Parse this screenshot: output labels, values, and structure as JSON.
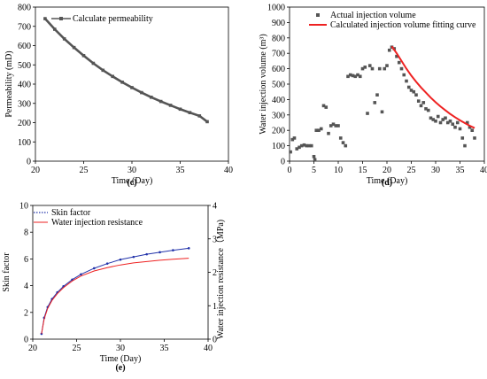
{
  "chart_data": [
    {
      "type": "line",
      "panel_label": "(c)",
      "xlabel": "Time (Day)",
      "ylabel": "Permeability (mD)",
      "xlim": [
        20,
        40
      ],
      "ylim": [
        0,
        800
      ],
      "xticks": [
        20,
        25,
        30,
        35,
        40
      ],
      "yticks": [
        0,
        100,
        200,
        300,
        400,
        500,
        600,
        700,
        800
      ],
      "legend_position": "top-left",
      "grid": false,
      "series": [
        {
          "name": "Calculate permeability",
          "color": "#555555",
          "marker": "square",
          "x": [
            21,
            22,
            23,
            24,
            25,
            26,
            27,
            28,
            29,
            30,
            31,
            32,
            33,
            34,
            35,
            36,
            37,
            37.8
          ],
          "y": [
            740,
            685,
            635,
            590,
            548,
            508,
            472,
            440,
            410,
            382,
            356,
            332,
            310,
            290,
            270,
            252,
            235,
            205
          ]
        }
      ]
    },
    {
      "type": "scatter",
      "panel_label": "(d)",
      "xlabel": "Time (Day)",
      "ylabel": "Water injection volume (m³)",
      "xlim": [
        0,
        40
      ],
      "ylim": [
        0,
        1000
      ],
      "xticks": [
        0,
        5,
        10,
        15,
        20,
        25,
        30,
        35,
        40
      ],
      "yticks": [
        0,
        100,
        200,
        300,
        400,
        500,
        600,
        700,
        800,
        900,
        1000
      ],
      "legend_position": "top-right",
      "grid": false,
      "series": [
        {
          "name": "Actual injection volume",
          "color": "#555555",
          "marker": "square",
          "x": [
            0.2,
            0.6,
            1,
            1.5,
            2,
            2.5,
            3,
            3.5,
            4,
            4.5,
            5,
            5.2,
            5.5,
            6,
            6.5,
            7,
            7.5,
            8,
            8.5,
            9,
            9.5,
            10,
            10.5,
            11,
            11.5,
            12,
            12.5,
            13,
            13.5,
            14,
            14.5,
            15,
            15.5,
            16,
            16.5,
            17,
            17.5,
            18,
            18.5,
            19,
            19.5,
            20,
            20.5,
            21,
            21.5,
            22,
            22.5,
            23,
            23.5,
            24,
            24.5,
            25,
            25.5,
            26,
            26.5,
            27,
            27.5,
            28,
            28.5,
            29,
            29.5,
            30,
            30.5,
            31,
            31.5,
            32,
            32.5,
            33,
            33.5,
            34,
            34.5,
            35,
            35.5,
            36,
            36.5,
            37,
            37.5,
            38
          ],
          "y": [
            60,
            140,
            150,
            80,
            90,
            100,
            105,
            100,
            100,
            100,
            30,
            10,
            200,
            200,
            210,
            360,
            350,
            180,
            230,
            240,
            230,
            230,
            150,
            120,
            100,
            550,
            560,
            555,
            550,
            560,
            550,
            600,
            610,
            310,
            620,
            600,
            380,
            430,
            600,
            320,
            600,
            620,
            720,
            740,
            730,
            680,
            640,
            600,
            560,
            520,
            480,
            460,
            450,
            430,
            390,
            360,
            380,
            340,
            330,
            280,
            270,
            260,
            290,
            250,
            270,
            280,
            250,
            260,
            240,
            220,
            250,
            210,
            150,
            100,
            250,
            220,
            200,
            150
          ]
        },
        {
          "name": "Calculated injection volume fitting curve",
          "color": "#ee2222",
          "marker": "none",
          "x": [
            21,
            22,
            23,
            24,
            25,
            26,
            27,
            28,
            29,
            30,
            31,
            32,
            33,
            34,
            35,
            36,
            37,
            38
          ],
          "y": [
            745,
            700,
            650,
            600,
            555,
            515,
            478,
            445,
            412,
            382,
            355,
            330,
            306,
            285,
            265,
            247,
            230,
            215
          ]
        }
      ]
    },
    {
      "type": "line",
      "panel_label": "(e)",
      "xlabel": "Time (Day)",
      "ylabel": "Skin factor",
      "y2label": "Water injection resistance（MPa)",
      "xlim": [
        20,
        40
      ],
      "ylim": [
        0,
        10
      ],
      "y2lim": [
        0,
        4
      ],
      "xticks": [
        20,
        25,
        30,
        35,
        40
      ],
      "yticks": [
        0,
        2,
        4,
        6,
        8,
        10
      ],
      "y2ticks": [
        0,
        1,
        2,
        3,
        4
      ],
      "legend_position": "top-left",
      "grid": false,
      "series": [
        {
          "name": "Skin factor",
          "color": "#2233aa",
          "marker": "dot",
          "axis": "left",
          "x": [
            21,
            21.3,
            21.7,
            22.2,
            22.8,
            23.5,
            24.5,
            25.5,
            27,
            28.5,
            30,
            31.5,
            33,
            34.5,
            36,
            37.8
          ],
          "y": [
            0.4,
            1.6,
            2.4,
            3.0,
            3.5,
            3.95,
            4.45,
            4.85,
            5.3,
            5.65,
            5.95,
            6.15,
            6.35,
            6.5,
            6.65,
            6.8
          ]
        },
        {
          "name": "Water injection resistance",
          "color": "#ee2222",
          "marker": "none",
          "axis": "right",
          "x": [
            21,
            21.3,
            21.7,
            22.2,
            22.8,
            23.5,
            24.5,
            25.5,
            27,
            28.5,
            30,
            31.5,
            33,
            34.5,
            36,
            37.8
          ],
          "y": [
            0.16,
            0.6,
            0.92,
            1.16,
            1.36,
            1.54,
            1.74,
            1.89,
            2.04,
            2.14,
            2.22,
            2.28,
            2.32,
            2.36,
            2.39,
            2.42
          ]
        }
      ]
    }
  ]
}
